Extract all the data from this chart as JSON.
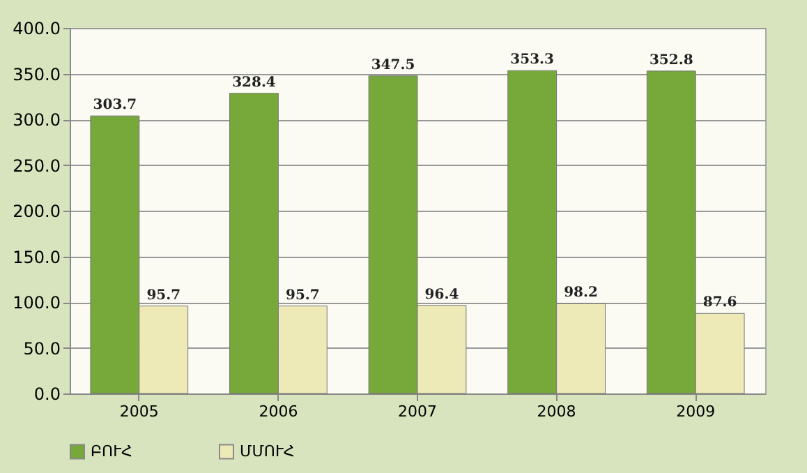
{
  "chart_data": {
    "type": "bar",
    "categories": [
      "2005",
      "2006",
      "2007",
      "2008",
      "2009"
    ],
    "series": [
      {
        "name": "ԲՈՒՀ",
        "color": "#77a83a",
        "values": [
          303.7,
          328.4,
          347.5,
          353.3,
          352.8
        ]
      },
      {
        "name": "ՄՄՈՒՀ",
        "color": "#eeeab8",
        "values": [
          95.7,
          95.7,
          96.4,
          98.2,
          87.6
        ]
      }
    ],
    "ylim": [
      0,
      400
    ],
    "yticks": [
      {
        "value": 0,
        "label": "0.0"
      },
      {
        "value": 50,
        "label": "50.0"
      },
      {
        "value": 100,
        "label": "100.0"
      },
      {
        "value": 150,
        "label": "150.0"
      },
      {
        "value": 200,
        "label": "200.0"
      },
      {
        "value": 250,
        "label": "250.0"
      },
      {
        "value": 300,
        "label": "300.0"
      },
      {
        "value": 350,
        "label": "350.0"
      },
      {
        "value": 400,
        "label": "400.0"
      }
    ],
    "grid": "y",
    "legend": "bottom",
    "data_labels": true
  }
}
